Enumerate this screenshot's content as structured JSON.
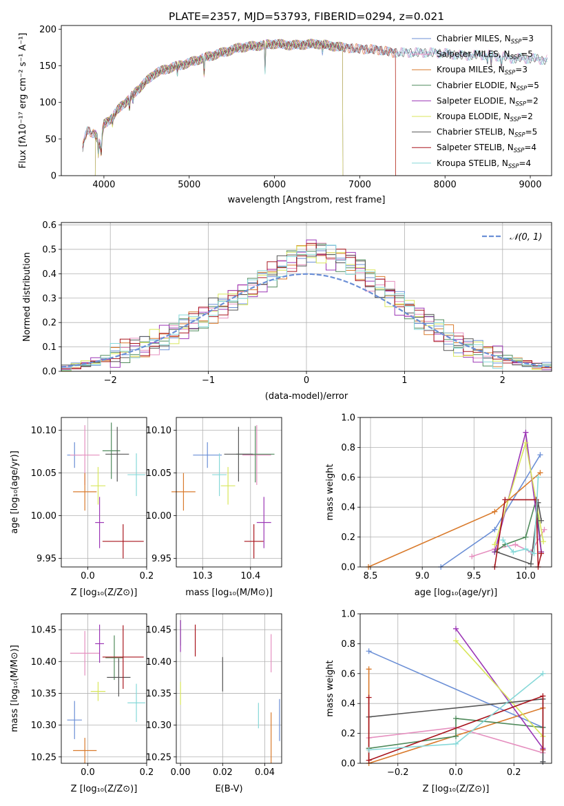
{
  "figure_title": "PLATE=2357, MJD=53793, FIBERID=0294, z=0.021",
  "series": [
    {
      "name": "Chabrier MILES",
      "nssp": "3",
      "color": "#6b8fd6"
    },
    {
      "name": "Salpeter MILES",
      "nssp": "5",
      "color": "#e58fbf"
    },
    {
      "name": "Kroupa MILES",
      "nssp": "3",
      "color": "#d97a2b"
    },
    {
      "name": "Chabrier ELODIE",
      "nssp": "5",
      "color": "#4f8a5b"
    },
    {
      "name": "Salpeter ELODIE",
      "nssp": "2",
      "color": "#9b35b5"
    },
    {
      "name": "Kroupa ELODIE",
      "nssp": "2",
      "color": "#d8e65a"
    },
    {
      "name": "Chabrier STELIB",
      "nssp": "5",
      "color": "#555555"
    },
    {
      "name": "Salpeter STELIB",
      "nssp": "4",
      "color": "#a8141c"
    },
    {
      "name": "Kroupa STELIB",
      "nssp": "4",
      "color": "#86d8d8"
    }
  ],
  "chart_data": [
    {
      "id": "spectrum",
      "type": "line",
      "title": "",
      "xlabel": "wavelength [Angstrom, rest frame]",
      "ylabel": "Flux [fλ10⁻¹⁷ erg cm⁻² s⁻¹ A⁻¹]",
      "xlim": [
        3500,
        9250
      ],
      "ylim": [
        0,
        205
      ],
      "xticks": [
        4000,
        5000,
        6000,
        7000,
        8000,
        9000
      ],
      "yticks": [
        0,
        50,
        100,
        150,
        200
      ],
      "grid": false,
      "legend": "upper right",
      "continuum": [
        [
          3750,
          38
        ],
        [
          3800,
          60
        ],
        [
          3900,
          58
        ],
        [
          3960,
          40
        ],
        [
          4000,
          70
        ],
        [
          4100,
          80
        ],
        [
          4200,
          95
        ],
        [
          4300,
          105
        ],
        [
          4400,
          118
        ],
        [
          4600,
          140
        ],
        [
          4800,
          148
        ],
        [
          5000,
          154
        ],
        [
          5150,
          160
        ],
        [
          5300,
          165
        ],
        [
          5600,
          175
        ],
        [
          5850,
          178
        ],
        [
          6000,
          180
        ],
        [
          6200,
          178
        ],
        [
          6500,
          180
        ],
        [
          6800,
          175
        ],
        [
          7000,
          173
        ],
        [
          7200,
          172
        ],
        [
          7400,
          168
        ],
        [
          7600,
          168
        ],
        [
          7800,
          168
        ],
        [
          8000,
          167
        ],
        [
          8200,
          164
        ],
        [
          8500,
          165
        ],
        [
          8800,
          160
        ],
        [
          9000,
          160
        ],
        [
          9200,
          158
        ]
      ],
      "dips": [
        {
          "center": 3934,
          "depth": 18
        },
        {
          "center": 3969,
          "depth": 16
        },
        {
          "center": 4101,
          "depth": 8
        },
        {
          "center": 4300,
          "depth": 12
        },
        {
          "center": 4340,
          "depth": 8
        },
        {
          "center": 4861,
          "depth": 10
        },
        {
          "center": 5175,
          "depth": 22
        },
        {
          "center": 5890,
          "depth": 35
        },
        {
          "center": 6563,
          "depth": 10
        },
        {
          "center": 8498,
          "depth": 10
        },
        {
          "center": 8542,
          "depth": 12
        },
        {
          "center": 8662,
          "depth": 12
        }
      ],
      "dropouts": [
        {
          "series": "Kroupa ELODIE",
          "ranges": [
            [
              3500,
              3900
            ],
            [
              6800,
              9250
            ]
          ]
        },
        {
          "series": "Chabrier ELODIE",
          "ranges": [
            [
              3500,
              3900
            ],
            [
              6800,
              9250
            ]
          ]
        },
        {
          "series": "Salpeter ELODIE",
          "ranges": [
            [
              3500,
              3900
            ],
            [
              6800,
              9250
            ]
          ]
        },
        {
          "series": "Kroupa MILES",
          "ranges": [
            [
              7420,
              9250
            ]
          ]
        },
        {
          "series": "Salpeter STELIB",
          "ranges": [
            [
              7420,
              9250
            ]
          ]
        }
      ]
    },
    {
      "id": "residuals",
      "type": "histogram",
      "xlabel": "(data-model)/error",
      "ylabel": "Normed distribution",
      "xlim": [
        -2.5,
        2.5
      ],
      "ylim": [
        0,
        0.61
      ],
      "xticks": [
        -2,
        -1,
        0,
        1,
        2
      ],
      "yticks": [
        0.0,
        0.1,
        0.2,
        0.3,
        0.4,
        0.5,
        0.6
      ],
      "grid": true,
      "legend": "upper right",
      "legend_label": "𝒩(0, 1)",
      "normal_color": "#6b8fd6",
      "bin_width": 0.1,
      "bin_start": -2.5,
      "profile": [
        0.01,
        0.02,
        0.03,
        0.04,
        0.05,
        0.06,
        0.08,
        0.09,
        0.1,
        0.12,
        0.14,
        0.16,
        0.18,
        0.2,
        0.22,
        0.25,
        0.27,
        0.3,
        0.32,
        0.34,
        0.37,
        0.4,
        0.43,
        0.46,
        0.48,
        0.5,
        0.49,
        0.47,
        0.46,
        0.45,
        0.42,
        0.38,
        0.35,
        0.32,
        0.28,
        0.25,
        0.22,
        0.2,
        0.17,
        0.14,
        0.11,
        0.09,
        0.08,
        0.07,
        0.06,
        0.05,
        0.04,
        0.03,
        0.02,
        0.02
      ]
    },
    {
      "id": "age_vs_Z",
      "type": "errorbar",
      "xlabel": "Z [log₁₀(Z/Z⊙)]",
      "ylabel": "age  [log₁₀(age/yr)]",
      "xlim": [
        -0.09,
        0.2
      ],
      "ylim": [
        9.94,
        10.115
      ],
      "xticks": [
        0.0,
        0.2
      ],
      "yticks": [
        9.95,
        10.0,
        10.05,
        10.1
      ],
      "grid": true,
      "points": [
        {
          "x": -0.045,
          "y": 10.071,
          "xerr": 0.025,
          "yerr": 0.015,
          "series": "Chabrier MILES"
        },
        {
          "x": -0.01,
          "y": 10.071,
          "xerr": 0.05,
          "yerr": 0.035,
          "series": "Salpeter MILES"
        },
        {
          "x": -0.01,
          "y": 10.028,
          "xerr": 0.04,
          "yerr": 0.022,
          "series": "Kroupa MILES"
        },
        {
          "x": 0.08,
          "y": 10.076,
          "xerr": 0.03,
          "yerr": 0.033,
          "series": "Chabrier ELODIE"
        },
        {
          "x": 0.04,
          "y": 9.992,
          "xerr": 0.015,
          "yerr": 0.03,
          "series": "Salpeter ELODIE"
        },
        {
          "x": 0.035,
          "y": 10.035,
          "xerr": 0.025,
          "yerr": 0.022,
          "series": "Kroupa ELODIE"
        },
        {
          "x": 0.1,
          "y": 10.072,
          "xerr": 0.04,
          "yerr": 0.032,
          "series": "Chabrier STELIB"
        },
        {
          "x": 0.12,
          "y": 9.97,
          "xerr": 0.07,
          "yerr": 0.02,
          "series": "Salpeter STELIB"
        },
        {
          "x": 0.165,
          "y": 10.048,
          "xerr": 0.03,
          "yerr": 0.025,
          "series": "Kroupa STELIB"
        }
      ]
    },
    {
      "id": "age_vs_mass",
      "type": "errorbar",
      "xlabel": "mass [log₁₀(M/M⊙)]",
      "ylabel": "",
      "xlim": [
        10.245,
        10.465
      ],
      "ylim": [
        9.94,
        10.115
      ],
      "xticks": [
        10.3,
        10.4
      ],
      "yticks": [
        9.95,
        10.0,
        10.05,
        10.1
      ],
      "grid": true,
      "points": [
        {
          "x": 10.31,
          "y": 10.071,
          "xerr": 0.03,
          "yerr": 0.015,
          "series": "Chabrier MILES"
        },
        {
          "x": 10.413,
          "y": 10.071,
          "xerr": 0.03,
          "yerr": 0.035,
          "series": "Salpeter MILES"
        },
        {
          "x": 10.26,
          "y": 10.028,
          "xerr": 0.025,
          "yerr": 0.022,
          "series": "Kroupa MILES"
        },
        {
          "x": 10.41,
          "y": 10.072,
          "xerr": 0.04,
          "yerr": 0.033,
          "series": "Chabrier ELODIE"
        },
        {
          "x": 10.428,
          "y": 9.992,
          "xerr": 0.015,
          "yerr": 0.03,
          "series": "Salpeter ELODIE"
        },
        {
          "x": 10.353,
          "y": 10.035,
          "xerr": 0.015,
          "yerr": 0.022,
          "series": "Kroupa ELODIE"
        },
        {
          "x": 10.375,
          "y": 10.072,
          "xerr": 0.03,
          "yerr": 0.032,
          "series": "Chabrier STELIB"
        },
        {
          "x": 10.407,
          "y": 9.97,
          "xerr": 0.02,
          "yerr": 0.02,
          "series": "Salpeter STELIB"
        },
        {
          "x": 10.335,
          "y": 10.048,
          "xerr": 0.015,
          "yerr": 0.025,
          "series": "Kroupa STELIB"
        }
      ]
    },
    {
      "id": "weight_vs_age",
      "type": "line",
      "xlabel": "age  [log₁₀(age/yr)]",
      "ylabel": "mass weight",
      "xlim": [
        8.4,
        10.25
      ],
      "ylim": [
        0,
        1
      ],
      "xticks": [
        8.5,
        9.0,
        9.5,
        10.0
      ],
      "yticks": [
        0.0,
        0.2,
        0.4,
        0.6,
        0.8,
        1.0
      ],
      "grid": true,
      "series_points": [
        {
          "series": "Chabrier MILES",
          "x": [
            9.18,
            9.7,
            10.14
          ],
          "y": [
            0.0,
            0.25,
            0.75
          ]
        },
        {
          "series": "Salpeter MILES",
          "x": [
            9.48,
            9.7,
            9.9,
            10.05,
            10.18
          ],
          "y": [
            0.07,
            0.12,
            0.15,
            0.1,
            0.25
          ]
        },
        {
          "series": "Kroupa MILES",
          "x": [
            8.48,
            9.7,
            10.14
          ],
          "y": [
            0.0,
            0.37,
            0.63
          ]
        },
        {
          "series": "Chabrier ELODIE",
          "x": [
            9.7,
            9.8,
            10.0,
            10.1,
            10.15
          ],
          "y": [
            0.1,
            0.15,
            0.2,
            0.45,
            0.1
          ]
        },
        {
          "series": "Salpeter ELODIE",
          "x": [
            9.7,
            10.0,
            10.15
          ],
          "y": [
            0.1,
            0.9,
            0.1
          ]
        },
        {
          "series": "Kroupa ELODIE",
          "x": [
            9.7,
            10.0,
            10.17
          ],
          "y": [
            0.15,
            0.83,
            0.17
          ]
        },
        {
          "series": "Chabrier STELIB",
          "x": [
            9.72,
            10.05,
            10.12,
            10.15
          ],
          "y": [
            0.1,
            0.02,
            0.43,
            0.31
          ]
        },
        {
          "series": "Salpeter STELIB",
          "x": [
            9.7,
            9.8,
            10.1,
            10.12,
            10.15
          ],
          "y": [
            0.0,
            0.45,
            0.45,
            0.0,
            0.09
          ]
        },
        {
          "series": "Kroupa STELIB",
          "x": [
            9.78,
            9.88,
            10.0,
            10.08,
            10.12
          ],
          "y": [
            0.18,
            0.1,
            0.12,
            0.09,
            0.6
          ]
        }
      ]
    },
    {
      "id": "mass_vs_Z",
      "type": "errorbar",
      "xlabel": "Z [log₁₀(Z/Z⊙)]",
      "ylabel": "mass [log₁₀(M/M⊙)]",
      "xlim": [
        -0.09,
        0.2
      ],
      "ylim": [
        10.24,
        10.475
      ],
      "xticks": [
        0.0,
        0.2
      ],
      "yticks": [
        10.25,
        10.3,
        10.35,
        10.4,
        10.45
      ],
      "grid": true,
      "points": [
        {
          "x": -0.045,
          "y": 10.308,
          "xerr": 0.025,
          "yerr": 0.03,
          "series": "Chabrier MILES"
        },
        {
          "x": -0.01,
          "y": 10.413,
          "xerr": 0.05,
          "yerr": 0.035,
          "series": "Salpeter MILES"
        },
        {
          "x": -0.01,
          "y": 10.26,
          "xerr": 0.04,
          "yerr": 0.02,
          "series": "Kroupa MILES"
        },
        {
          "x": 0.09,
          "y": 10.406,
          "xerr": 0.03,
          "yerr": 0.035,
          "series": "Chabrier ELODIE"
        },
        {
          "x": 0.04,
          "y": 10.428,
          "xerr": 0.015,
          "yerr": 0.03,
          "series": "Salpeter ELODIE"
        },
        {
          "x": 0.035,
          "y": 10.353,
          "xerr": 0.025,
          "yerr": 0.015,
          "series": "Kroupa ELODIE"
        },
        {
          "x": 0.105,
          "y": 10.375,
          "xerr": 0.04,
          "yerr": 0.03,
          "series": "Chabrier STELIB"
        },
        {
          "x": 0.12,
          "y": 10.407,
          "xerr": 0.07,
          "yerr": 0.05,
          "series": "Salpeter STELIB"
        },
        {
          "x": 0.165,
          "y": 10.335,
          "xerr": 0.03,
          "yerr": 0.03,
          "series": "Kroupa STELIB"
        }
      ]
    },
    {
      "id": "mass_vs_EBV",
      "type": "errorbar",
      "xlabel": "E(B-V)",
      "ylabel": "",
      "xlim": [
        -0.002,
        0.048
      ],
      "ylim": [
        10.24,
        10.475
      ],
      "xticks": [
        0.0,
        0.02,
        0.04
      ],
      "yticks": [
        10.25,
        10.3,
        10.35,
        10.4,
        10.45
      ],
      "grid": true,
      "points": [
        {
          "x": 0.047,
          "y": 10.308,
          "xerr": 0,
          "yerr": 0.033,
          "series": "Chabrier MILES"
        },
        {
          "x": 0.043,
          "y": 10.413,
          "xerr": 0,
          "yerr": 0.03,
          "series": "Salpeter MILES"
        },
        {
          "x": 0.043,
          "y": 10.28,
          "xerr": 0,
          "yerr": 0.04,
          "series": "Kroupa MILES"
        },
        {
          "x": 0.0,
          "y": 10.445,
          "xerr": 0,
          "yerr": 0.02,
          "series": "Chabrier ELODIE"
        },
        {
          "x": 0.0,
          "y": 10.44,
          "xerr": 0,
          "yerr": 0.025,
          "series": "Salpeter ELODIE"
        },
        {
          "x": 0.0,
          "y": 10.35,
          "xerr": 0,
          "yerr": 0.018,
          "series": "Kroupa ELODIE"
        },
        {
          "x": 0.02,
          "y": 10.38,
          "xerr": 0,
          "yerr": 0.027,
          "series": "Chabrier STELIB"
        },
        {
          "x": 0.007,
          "y": 10.433,
          "xerr": 0,
          "yerr": 0.025,
          "series": "Salpeter STELIB"
        },
        {
          "x": 0.037,
          "y": 10.315,
          "xerr": 0,
          "yerr": 0.02,
          "series": "Kroupa STELIB"
        }
      ]
    },
    {
      "id": "weight_vs_Z",
      "type": "line",
      "xlabel": "Z [log₁₀(Z/Z⊙)]",
      "ylabel": "mass weight",
      "xlim": [
        -0.33,
        0.33
      ],
      "ylim": [
        0,
        1
      ],
      "xticks": [
        -0.2,
        0.0,
        0.2
      ],
      "yticks": [
        0.0,
        0.2,
        0.4,
        0.6,
        0.8,
        1.0
      ],
      "grid": true,
      "series_points": [
        {
          "series": "Chabrier MILES",
          "x": [
            -0.3,
            0.3,
            0.3
          ],
          "y": [
            0.75,
            0.24,
            0.01
          ]
        },
        {
          "series": "Salpeter MILES",
          "x": [
            -0.3,
            0.0,
            0.3
          ],
          "y": [
            0.17,
            0.24,
            0.07
          ]
        },
        {
          "series": "Kroupa MILES",
          "x": [
            -0.3,
            -0.3,
            0.3
          ],
          "y": [
            0.63,
            0.0,
            0.37
          ]
        },
        {
          "series": "Chabrier ELODIE",
          "x": [
            -0.3,
            0.0,
            0.0,
            0.3
          ],
          "y": [
            0.1,
            0.18,
            0.3,
            0.24
          ]
        },
        {
          "series": "Salpeter ELODIE",
          "x": [
            0.0,
            0.3
          ],
          "y": [
            0.9,
            0.1
          ]
        },
        {
          "series": "Kroupa ELODIE",
          "x": [
            0.0,
            0.3
          ],
          "y": [
            0.82,
            0.18
          ]
        },
        {
          "series": "Chabrier STELIB",
          "x": [
            -0.3,
            0.3,
            0.3
          ],
          "y": [
            0.31,
            0.43,
            0.01
          ]
        },
        {
          "series": "Salpeter STELIB",
          "x": [
            -0.3,
            -0.3,
            0.3,
            0.3
          ],
          "y": [
            0.44,
            0.02,
            0.45,
            0.09
          ]
        },
        {
          "series": "Kroupa STELIB",
          "x": [
            -0.3,
            0.0,
            0.3
          ],
          "y": [
            0.09,
            0.13,
            0.6
          ]
        }
      ]
    }
  ]
}
